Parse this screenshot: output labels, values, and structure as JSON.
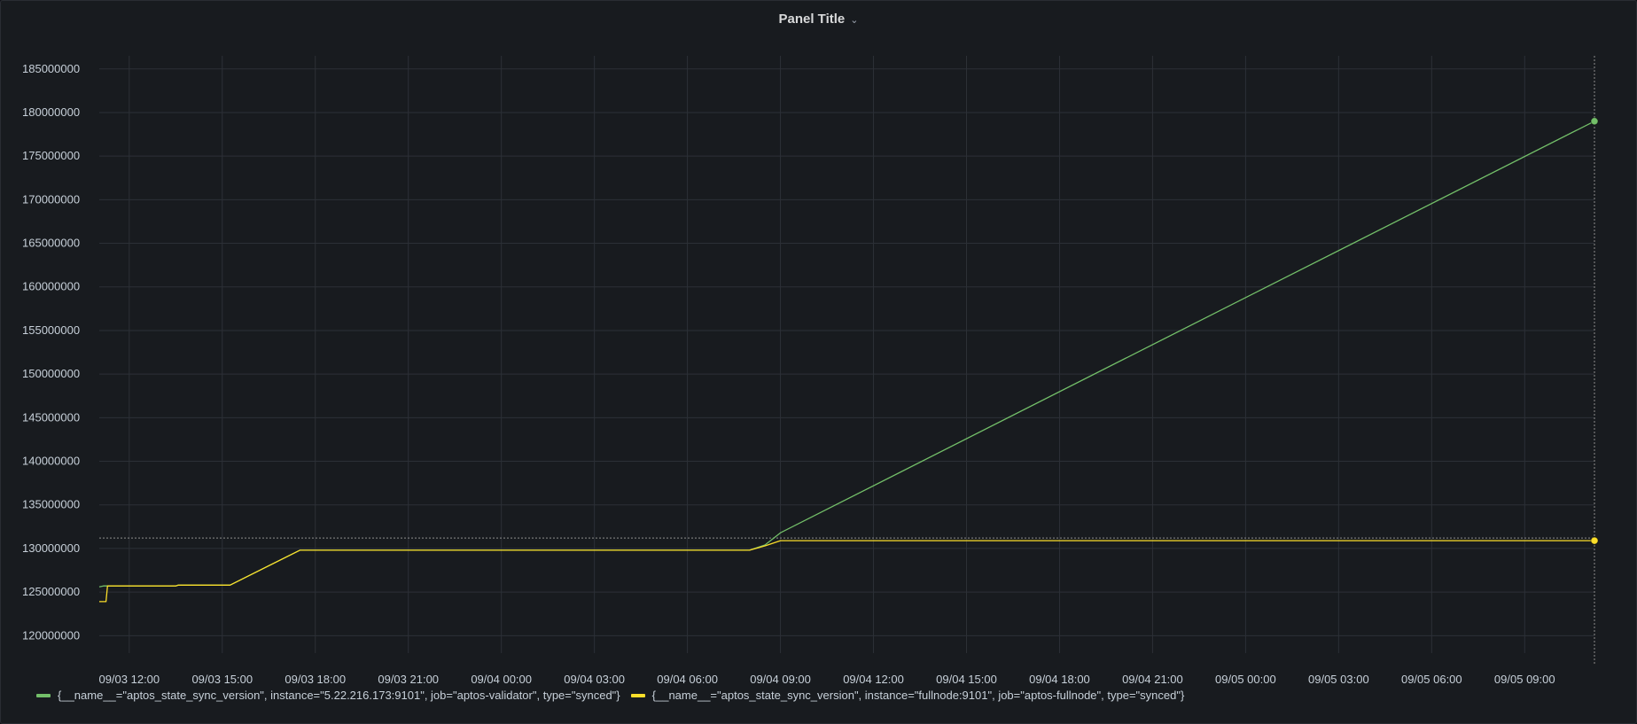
{
  "panel": {
    "title": "Panel Title",
    "menu_icon": "chevron-down-icon"
  },
  "chart_data": {
    "type": "line",
    "title": "Panel Title",
    "xlabel": "",
    "ylabel": "",
    "grid": true,
    "legend_position": "bottom-left",
    "x_tick_labels": [
      "09/03 12:00",
      "09/03 15:00",
      "09/03 18:00",
      "09/03 21:00",
      "09/04 00:00",
      "09/04 03:00",
      "09/04 06:00",
      "09/04 09:00",
      "09/04 12:00",
      "09/04 15:00",
      "09/04 18:00",
      "09/04 21:00",
      "09/05 00:00",
      "09/05 03:00",
      "09/05 06:00",
      "09/05 09:00"
    ],
    "y_tick_labels": [
      "120000000",
      "125000000",
      "130000000",
      "135000000",
      "140000000",
      "145000000",
      "150000000",
      "155000000",
      "160000000",
      "165000000",
      "170000000",
      "175000000",
      "180000000",
      "185000000"
    ],
    "ylim": [
      118000000,
      186500000
    ],
    "xlim": [
      "09/03 11:02",
      "09/05 11:15"
    ],
    "series": [
      {
        "name": "{__name__=\"aptos_state_sync_version\", instance=\"5.22.216.173:9101\", job=\"aptos-validator\", type=\"synced\"}",
        "color": "#73bf69",
        "points": [
          [
            "09/03 11:02",
            125600000
          ],
          [
            "09/03 11:10",
            125700000
          ],
          [
            "09/03 13:30",
            125700000
          ],
          [
            "09/03 13:35",
            125800000
          ],
          [
            "09/03 15:15",
            125800000
          ],
          [
            "09/03 17:30",
            129800000
          ],
          [
            "09/04 08:00",
            129800000
          ],
          [
            "09/04 08:30",
            130400000
          ],
          [
            "09/04 09:00",
            131800000
          ],
          [
            "09/05 11:15",
            179000000
          ]
        ]
      },
      {
        "name": "{__name__=\"aptos_state_sync_version\", instance=\"fullnode:9101\", job=\"aptos-fullnode\", type=\"synced\"}",
        "color": "#fade2a",
        "points": [
          [
            "09/03 11:02",
            123900000
          ],
          [
            "09/03 11:15",
            123900000
          ],
          [
            "09/03 11:18",
            125700000
          ],
          [
            "09/03 13:30",
            125700000
          ],
          [
            "09/03 13:35",
            125800000
          ],
          [
            "09/03 15:15",
            125800000
          ],
          [
            "09/03 17:30",
            129800000
          ],
          [
            "09/04 08:00",
            129800000
          ],
          [
            "09/04 08:30",
            130300000
          ],
          [
            "09/04 09:00",
            130900000
          ],
          [
            "09/05 11:15",
            130900000
          ]
        ]
      }
    ],
    "hover_crosshair": {
      "x": "09/05 11:15",
      "y": 131200000
    }
  }
}
